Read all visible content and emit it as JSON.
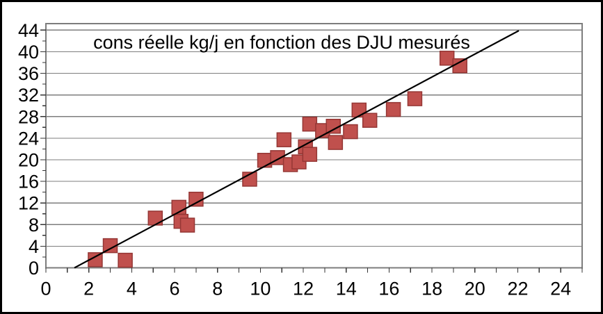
{
  "window": {
    "background": "#ffffff",
    "border_color": "#000000"
  },
  "chart_data": {
    "type": "scatter",
    "title": "cons réelle kg/j en fonction des DJU mesurés",
    "xlabel": "",
    "ylabel": "",
    "xlim": [
      0,
      25
    ],
    "ylim": [
      0,
      45.2
    ],
    "x_tick_labels": [
      "0",
      "2",
      "4",
      "6",
      "8",
      "10",
      "12",
      "14",
      "16",
      "18",
      "20",
      "22",
      "24"
    ],
    "x_tick_step": 2,
    "x_minor_tick_step": 1,
    "y_tick_labels": [
      "0",
      "4",
      "8",
      "12",
      "16",
      "20",
      "24",
      "28",
      "32",
      "36",
      "40",
      "44"
    ],
    "y_tick_step": 4,
    "y_minor_tick_step": 2,
    "grid": "horizontal major gridlines only",
    "legend": "none",
    "plot_border": true,
    "axis_color": "#333333",
    "grid_color": "#7d7d7d",
    "text_color": "#000000",
    "series": [
      {
        "name": "cons réelle kg/j",
        "marker": "square",
        "marker_size_px": 20,
        "marker_fill": "#C0504D",
        "marker_stroke": "#953735",
        "points": [
          [
            2.3,
            1.5
          ],
          [
            3.0,
            4.1
          ],
          [
            3.7,
            1.4
          ],
          [
            5.1,
            9.2
          ],
          [
            6.2,
            11.2
          ],
          [
            6.3,
            8.6
          ],
          [
            6.6,
            7.9
          ],
          [
            7.0,
            12.7
          ],
          [
            9.5,
            16.4
          ],
          [
            10.2,
            19.9
          ],
          [
            10.8,
            20.4
          ],
          [
            11.1,
            23.7
          ],
          [
            11.4,
            19.1
          ],
          [
            11.8,
            19.6
          ],
          [
            12.1,
            22.4
          ],
          [
            12.3,
            21.0
          ],
          [
            12.3,
            26.6
          ],
          [
            12.9,
            25.4
          ],
          [
            13.4,
            26.2
          ],
          [
            13.5,
            23.2
          ],
          [
            14.2,
            25.2
          ],
          [
            14.6,
            29.2
          ],
          [
            15.1,
            27.3
          ],
          [
            16.2,
            29.3
          ],
          [
            17.2,
            31.3
          ],
          [
            18.7,
            38.8
          ],
          [
            19.3,
            37.4
          ]
        ]
      }
    ],
    "trendline": {
      "type": "linear",
      "x_start": 1.33,
      "y_start": 0,
      "x_end": 22.05,
      "y_end": 43.9,
      "color": "#000000"
    }
  }
}
